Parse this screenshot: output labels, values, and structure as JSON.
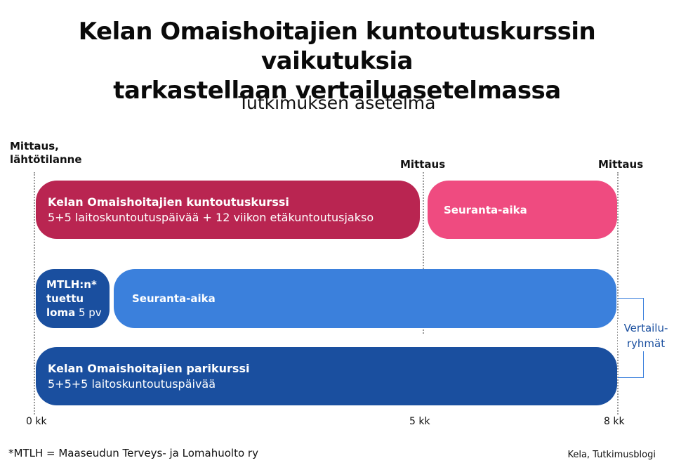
{
  "title_lines": [
    "Kelan Omaishoitajien kuntoutuskurssin vaikutuksia",
    "tarkastellaan vertailuasetelmassa"
  ],
  "subtitle": "Tutkimuksen asetelma",
  "measurements": {
    "start": [
      "Mittaus,",
      "lähtötilanne"
    ],
    "middle": "Mittaus",
    "end": "Mittaus"
  },
  "bars": {
    "course": {
      "title": "Kelan Omaishoitajien kuntoutuskurssi",
      "detail": "5+5 laitoskuntoutuspäivää + 12 viikon etäkuntoutusjakso"
    },
    "course_followup": "Seuranta-aika",
    "loma": {
      "lines": [
        "MTLH:n*",
        "tuettu"
      ],
      "last_bold": "loma",
      "last_rest": " 5 pv"
    },
    "loma_followup": "Seuranta-aika",
    "pari": {
      "title": "Kelan Omaishoitajien parikurssi",
      "detail": "5+5+5 laitoskuntoutuspäivää"
    }
  },
  "comparison_groups": [
    "Vertailu-",
    "ryhmät"
  ],
  "axis_ticks": [
    "0 kk",
    "5 kk",
    "8 kk"
  ],
  "footnote": "*MTLH = Maaseudun Terveys- ja Lomahuolto ry",
  "source": "Kela, Tutkimusblogi",
  "colors": {
    "course": "#b92551",
    "course_followup": "#ef4b80",
    "loma": "#1a4f9f",
    "loma_followup": "#3b80dc",
    "pari": "#1a4f9f",
    "comparison_label": "#1a4f9f"
  }
}
